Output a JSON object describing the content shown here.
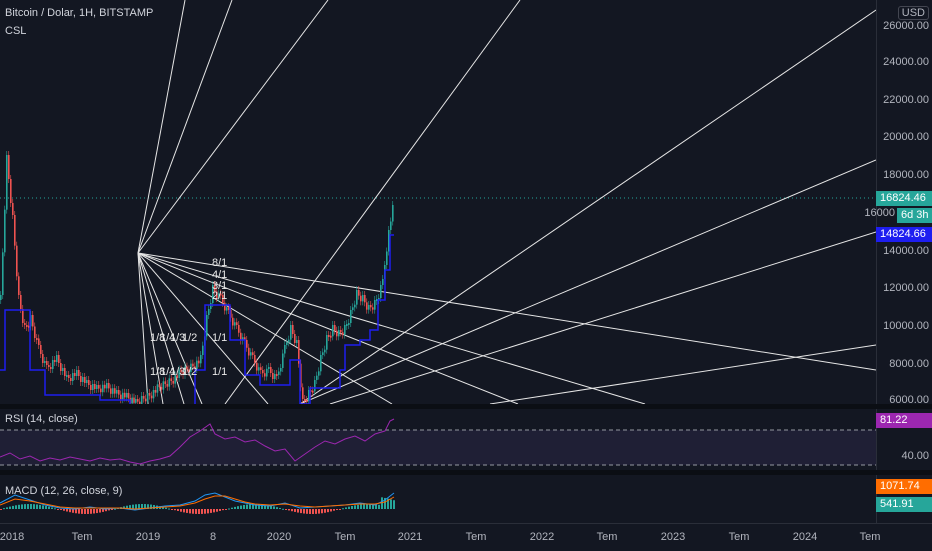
{
  "symbol_legend": {
    "title": "Bitcoin / Dolar, 1H, BITSTAMP",
    "indicator": "CSL"
  },
  "currency_button": "USD",
  "price_axis": [
    "26000.00",
    "24000.00",
    "22000.00",
    "20000.00",
    "18000.00",
    "16000",
    "14000.00",
    "12000.00",
    "10000.00",
    "8000.00",
    "6000.00"
  ],
  "price_tags": {
    "last": {
      "text": "16824.46",
      "color": "#26a69a"
    },
    "countdown": {
      "text": "6d 3h",
      "color": "#26a69a"
    },
    "indicator": {
      "text": "14824.66",
      "color": "#1e1ef0"
    }
  },
  "fan_labels": [
    "8/1",
    "4/1",
    "3/1",
    "2/1",
    "1/8",
    "1/4",
    "1/3",
    "1/2",
    "1/1",
    "1/8",
    "1/4",
    "1/3",
    "1/2",
    "1/1"
  ],
  "rsi": {
    "legend": "RSI (14, close)",
    "value": "81.22",
    "value_color": "#9c27b0",
    "axis_label": "40.00"
  },
  "macd": {
    "legend": "MACD (12, 26, close, 9)",
    "value_macd": "1071.74",
    "macd_color": "#ff6d00",
    "value_hist": "541.91",
    "hist_color": "#26a69a"
  },
  "time_axis": [
    "2018",
    "Tem",
    "2019",
    "8",
    "2020",
    "Tem",
    "2021",
    "Tem",
    "2022",
    "Tem",
    "2023",
    "Tem",
    "2024",
    "Tem"
  ]
}
